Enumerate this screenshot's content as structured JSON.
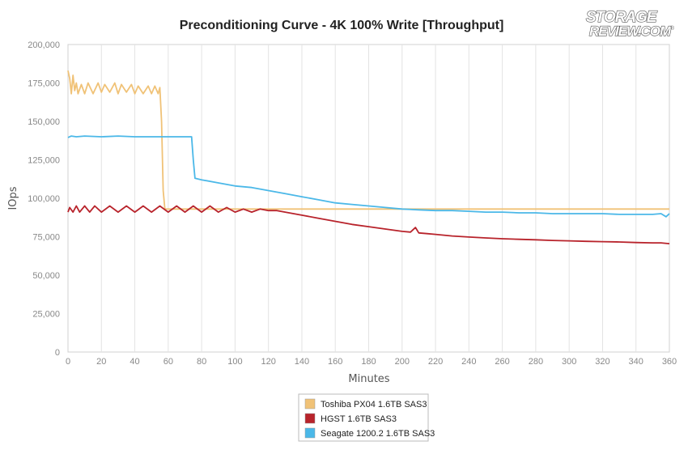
{
  "logo": {
    "line1": "STORAGE",
    "line2": "REVIEW.COM",
    "reg": "®"
  },
  "chart_data": {
    "type": "line",
    "title": "Preconditioning Curve - 4K 100% Write [Throughput]",
    "xlabel": "Minutes",
    "ylabel": "IOps",
    "xlim": [
      0,
      360
    ],
    "ylim": [
      0,
      200000
    ],
    "x_ticks": [
      0,
      20,
      40,
      60,
      80,
      100,
      120,
      140,
      160,
      180,
      200,
      220,
      240,
      260,
      280,
      300,
      320,
      340,
      360
    ],
    "y_ticks": [
      0,
      25000,
      50000,
      75000,
      100000,
      125000,
      150000,
      175000,
      200000
    ],
    "y_tick_labels": [
      "0",
      "25,000",
      "50,000",
      "75,000",
      "100,000",
      "125,000",
      "150,000",
      "175,000",
      "200,000"
    ],
    "grid": "vertical",
    "legend_position": "bottom-center",
    "series": [
      {
        "name": "Toshiba PX04 1.6TB SAS3",
        "color": "#f0c277",
        "x": [
          0,
          1,
          2,
          3,
          4,
          5,
          6,
          8,
          10,
          12,
          15,
          18,
          20,
          22,
          25,
          28,
          30,
          32,
          35,
          38,
          40,
          42,
          45,
          48,
          50,
          52,
          54,
          55,
          56,
          57,
          58,
          60,
          80,
          100,
          120,
          140,
          160,
          180,
          200,
          220,
          240,
          260,
          280,
          300,
          320,
          340,
          360
        ],
        "y": [
          183000,
          178000,
          168000,
          180000,
          170000,
          175000,
          168000,
          174000,
          168000,
          175000,
          168000,
          175000,
          169000,
          174000,
          169000,
          175000,
          168000,
          174000,
          169000,
          174000,
          168000,
          173000,
          168000,
          173000,
          168000,
          173000,
          168000,
          172000,
          150000,
          105000,
          93000,
          93000,
          93000,
          93000,
          93000,
          93000,
          93000,
          93000,
          93000,
          93000,
          93000,
          93000,
          93000,
          93000,
          93000,
          93000,
          93000
        ]
      },
      {
        "name": "HGST 1.6TB SAS3",
        "color": "#b8232b",
        "x": [
          0,
          1,
          3,
          5,
          7,
          10,
          13,
          16,
          20,
          25,
          30,
          35,
          40,
          45,
          50,
          55,
          60,
          65,
          70,
          75,
          80,
          85,
          90,
          95,
          100,
          105,
          110,
          115,
          120,
          125,
          130,
          140,
          150,
          160,
          170,
          180,
          190,
          200,
          205,
          208,
          210,
          215,
          220,
          230,
          240,
          250,
          260,
          270,
          280,
          290,
          300,
          310,
          320,
          330,
          340,
          350,
          355,
          360
        ],
        "y": [
          91000,
          94000,
          91000,
          95000,
          91000,
          95000,
          91000,
          95000,
          91000,
          95000,
          91000,
          95000,
          91000,
          95000,
          91000,
          95000,
          91000,
          95000,
          91000,
          95000,
          91000,
          95000,
          91000,
          94000,
          91000,
          93000,
          91000,
          93000,
          92000,
          92000,
          91000,
          89000,
          87000,
          85000,
          83000,
          81500,
          80000,
          78500,
          78000,
          81000,
          77500,
          77000,
          76500,
          75500,
          74800,
          74200,
          73700,
          73300,
          73000,
          72600,
          72300,
          72000,
          71800,
          71600,
          71200,
          71000,
          71000,
          70500
        ]
      },
      {
        "name": "Seagate 1200.2 1.6TB SAS3",
        "color": "#4bb8e8",
        "x": [
          0,
          2,
          5,
          10,
          20,
          30,
          40,
          50,
          60,
          70,
          74,
          75,
          76,
          80,
          90,
          100,
          110,
          120,
          130,
          140,
          150,
          160,
          170,
          180,
          190,
          200,
          210,
          220,
          230,
          240,
          250,
          260,
          270,
          280,
          290,
          300,
          310,
          320,
          330,
          340,
          350,
          355,
          358,
          360
        ],
        "y": [
          139500,
          140500,
          140000,
          140500,
          140000,
          140500,
          140000,
          140000,
          140000,
          140000,
          140000,
          125000,
          113000,
          112000,
          110000,
          108000,
          107000,
          105000,
          103000,
          101000,
          99000,
          97000,
          96000,
          95000,
          94000,
          93000,
          92500,
          92000,
          92000,
          91500,
          91000,
          91000,
          90500,
          90500,
          90000,
          90000,
          90000,
          90000,
          89500,
          89500,
          89500,
          90000,
          88000,
          90000
        ]
      }
    ]
  }
}
